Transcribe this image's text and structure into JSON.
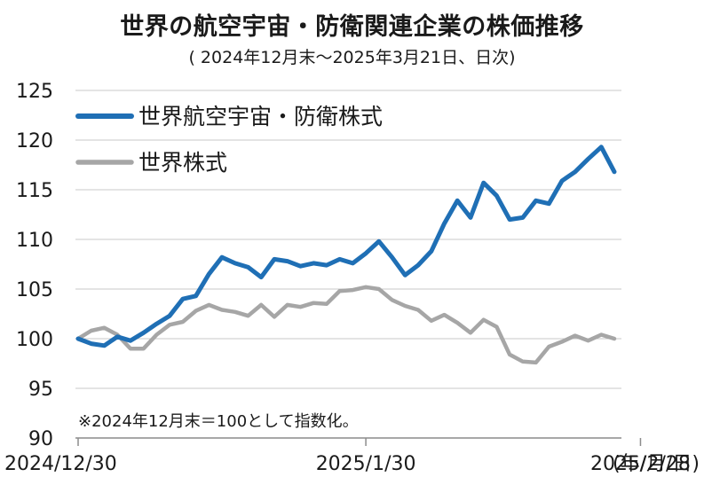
{
  "chart_data": {
    "type": "line",
    "title": "世界の航空宇宙・防衛関連企業の株価推移",
    "subtitle": "( 2024年12月末～2025年3月21日、日次)",
    "xlabel": "(年/月/日)",
    "ylabel": "",
    "ylim": [
      90,
      125
    ],
    "yticks": [
      90,
      95,
      100,
      105,
      110,
      115,
      120,
      125
    ],
    "xticks": [
      {
        "label": "2024/12/30",
        "index": 0
      },
      {
        "label": "2025/1/30",
        "index": 22
      },
      {
        "label": "2025/2/28",
        "index": 43
      }
    ],
    "grid": "horizontal",
    "legend_position": "top-left",
    "note": "※2024年12月末＝100として指数化。",
    "series": [
      {
        "name": "世界航空宇宙・防衛株式",
        "color": "#1f6fb5",
        "values": [
          100.0,
          99.5,
          99.3,
          100.2,
          99.8,
          100.6,
          101.5,
          102.3,
          104.0,
          104.3,
          106.5,
          108.2,
          107.6,
          107.2,
          106.2,
          108.0,
          107.8,
          107.3,
          107.6,
          107.4,
          108.0,
          107.6,
          108.6,
          109.8,
          108.2,
          106.4,
          107.4,
          108.8,
          111.6,
          113.9,
          112.2,
          115.7,
          114.4,
          112.0,
          112.2,
          113.9,
          113.6,
          115.9,
          116.8,
          118.1,
          119.3,
          116.8
        ]
      },
      {
        "name": "世界株式",
        "color": "#a6a6a6",
        "values": [
          100.0,
          100.8,
          101.1,
          100.4,
          99.0,
          99.0,
          100.4,
          101.4,
          101.7,
          102.8,
          103.4,
          102.9,
          102.7,
          102.3,
          103.4,
          102.2,
          103.4,
          103.2,
          103.6,
          103.5,
          104.8,
          104.9,
          105.2,
          105.0,
          103.9,
          103.3,
          102.9,
          101.8,
          102.4,
          101.6,
          100.6,
          101.9,
          101.2,
          98.4,
          97.7,
          97.6,
          99.2,
          99.7,
          100.3,
          99.8,
          100.4,
          100.0
        ]
      }
    ]
  }
}
